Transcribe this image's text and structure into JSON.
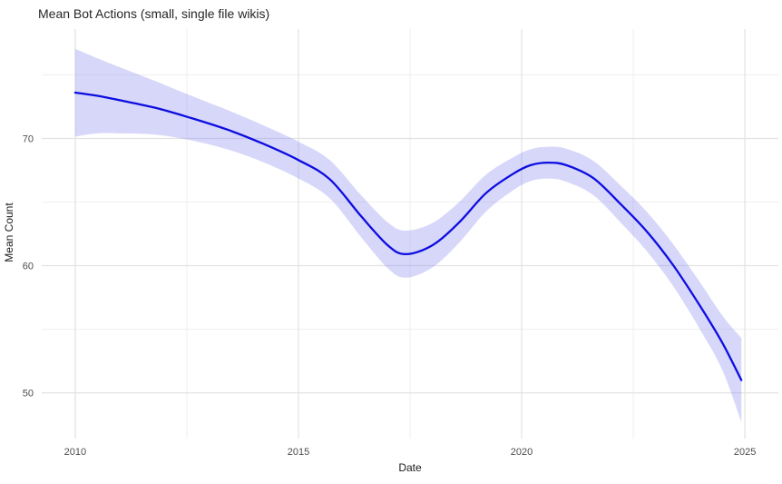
{
  "chart_data": {
    "type": "line",
    "title": "Mean Bot Actions (small, single file wikis)",
    "xlabel": "Date",
    "ylabel": "Mean Count",
    "x_domain": [
      2009.25,
      2025.75
    ],
    "y_domain": [
      46.4,
      78.6
    ],
    "x_ticks": {
      "major": [
        2010,
        2015,
        2020,
        2025
      ],
      "labels": [
        "2010",
        "2015",
        "2020",
        "2025"
      ],
      "minor": [
        2012.5,
        2017.5,
        2022.5
      ]
    },
    "y_ticks": {
      "major": [
        50,
        60,
        70
      ],
      "labels": [
        "50",
        "60",
        "70"
      ],
      "minor": [
        55,
        65,
        75
      ]
    },
    "grid": true,
    "legend": "none",
    "series": [
      {
        "name": "loess-smooth-mean-bot-actions",
        "geometry": "smooth-line-with-confidence-band",
        "points_xyhalf": [
          [
            2010.0,
            73.6,
            3.45
          ],
          [
            2010.5,
            73.35,
            2.95
          ],
          [
            2011.0,
            73.0,
            2.6
          ],
          [
            2011.8,
            72.4,
            2.1
          ],
          [
            2012.6,
            71.6,
            1.75
          ],
          [
            2013.4,
            70.7,
            1.55
          ],
          [
            2014.2,
            69.6,
            1.45
          ],
          [
            2015.0,
            68.3,
            1.45
          ],
          [
            2015.7,
            66.8,
            1.5
          ],
          [
            2016.4,
            63.9,
            1.65
          ],
          [
            2017.0,
            61.6,
            1.8
          ],
          [
            2017.4,
            60.9,
            1.85
          ],
          [
            2018.0,
            61.6,
            1.75
          ],
          [
            2018.6,
            63.4,
            1.6
          ],
          [
            2019.2,
            65.7,
            1.45
          ],
          [
            2019.8,
            67.2,
            1.3
          ],
          [
            2020.2,
            67.9,
            1.25
          ],
          [
            2020.6,
            68.1,
            1.25
          ],
          [
            2021.0,
            67.9,
            1.3
          ],
          [
            2021.6,
            66.9,
            1.35
          ],
          [
            2022.2,
            64.9,
            1.45
          ],
          [
            2022.8,
            62.7,
            1.55
          ],
          [
            2023.4,
            60.0,
            1.65
          ],
          [
            2024.0,
            56.8,
            1.85
          ],
          [
            2024.5,
            53.9,
            2.15
          ],
          [
            2024.92,
            51.0,
            3.3
          ]
        ]
      }
    ],
    "colors": {
      "line": "#0d0de0",
      "band": "#8c8cf0",
      "band_opacity": 0.35,
      "grid_major": "#e2e2e2",
      "grid_minor": "#efefef",
      "tick_label": "#4d4d4d",
      "axis_title": "#1a1a1a",
      "title": "#262626",
      "background": "#ffffff"
    }
  }
}
